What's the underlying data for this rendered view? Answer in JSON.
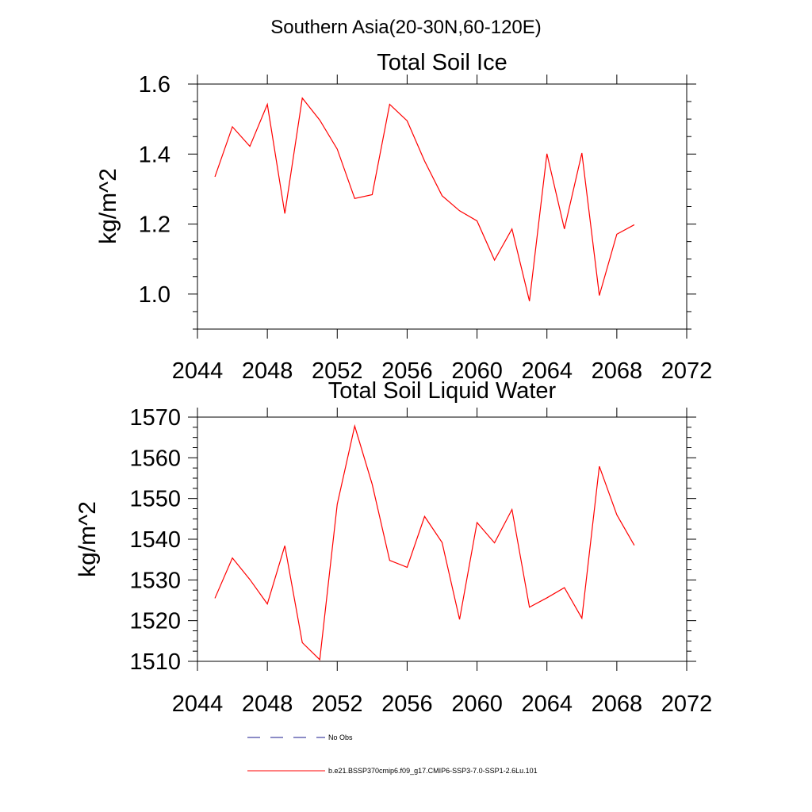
{
  "figure": {
    "suptitle": "Southern Asia(20-30N,60-120E)"
  },
  "legend": {
    "items": [
      {
        "label": "No Obs",
        "style": "dashed",
        "color": "#1a1a8c"
      },
      {
        "label": "b.e21.BSSP370cmip6.f09_g17.CMIP6-SSP3-7.0-SSP1-2.6Lu.101",
        "style": "solid",
        "color": "#ff0000"
      }
    ]
  },
  "chart_data": [
    {
      "type": "line",
      "title": "Total Soil Ice",
      "xlabel": "",
      "ylabel": "kg/m^2",
      "xlim": [
        2044,
        2072
      ],
      "ylim": [
        0.9,
        1.6
      ],
      "xticks": [
        2044,
        2048,
        2052,
        2056,
        2060,
        2064,
        2068,
        2072
      ],
      "yticks": [
        1.0,
        1.2,
        1.4,
        1.6
      ],
      "ytick_labels": [
        "1.0",
        "1.2",
        "1.4",
        "1.6"
      ],
      "x": [
        2045,
        2046,
        2047,
        2048,
        2049,
        2050,
        2051,
        2052,
        2053,
        2054,
        2055,
        2056,
        2057,
        2058,
        2059,
        2060,
        2061,
        2062,
        2063,
        2064,
        2065,
        2066,
        2067,
        2068,
        2069
      ],
      "series": [
        {
          "color": "#ff0000",
          "values": [
            1.335,
            1.478,
            1.422,
            1.542,
            1.23,
            1.56,
            1.497,
            1.414,
            1.273,
            1.284,
            1.542,
            1.495,
            1.38,
            1.281,
            1.238,
            1.209,
            1.097,
            1.186,
            0.98,
            1.401,
            1.186,
            1.403,
            0.996,
            1.171,
            1.198
          ]
        }
      ]
    },
    {
      "type": "line",
      "title": "Total Soil Liquid Water",
      "xlabel": "",
      "ylabel": "kg/m^2",
      "xlim": [
        2044,
        2072
      ],
      "ylim": [
        1510,
        1570
      ],
      "xticks": [
        2044,
        2048,
        2052,
        2056,
        2060,
        2064,
        2068,
        2072
      ],
      "yticks": [
        1510,
        1520,
        1530,
        1540,
        1550,
        1560,
        1570
      ],
      "ytick_labels": [
        "1510",
        "1520",
        "1530",
        "1540",
        "1550",
        "1560",
        "1570"
      ],
      "x": [
        2045,
        2046,
        2047,
        2048,
        2049,
        2050,
        2051,
        2052,
        2053,
        2054,
        2055,
        2056,
        2057,
        2058,
        2059,
        2060,
        2061,
        2062,
        2063,
        2064,
        2065,
        2066,
        2067,
        2068,
        2069
      ],
      "series": [
        {
          "color": "#ff0000",
          "values": [
            1525.5,
            1535.4,
            1530.1,
            1524.1,
            1538.4,
            1514.6,
            1510.4,
            1548.6,
            1567.8,
            1553.5,
            1534.8,
            1533.1,
            1545.6,
            1539.2,
            1520.3,
            1544.1,
            1539.1,
            1547.3,
            1523.3,
            1525.6,
            1528.1,
            1520.6,
            1557.9,
            1546.0,
            1538.5
          ]
        }
      ]
    }
  ]
}
